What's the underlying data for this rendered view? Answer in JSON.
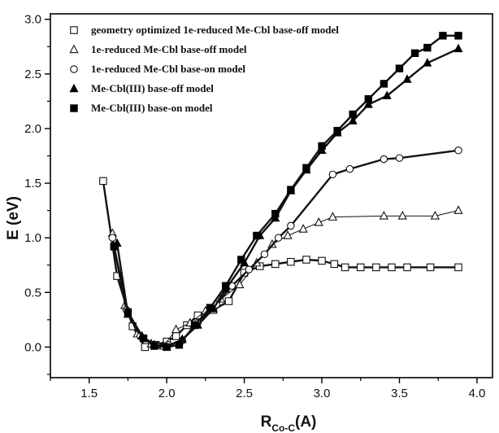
{
  "chart_data": {
    "type": "line",
    "title": "",
    "xlabel": "R",
    "xlabel_sub": "Co-C",
    "xlabel_unit": "(A)",
    "ylabel": "E (eV)",
    "xlim": [
      1.25,
      4.1
    ],
    "ylim": [
      -0.28,
      3.05
    ],
    "xticks": [
      1.5,
      2.0,
      2.5,
      3.0,
      3.5,
      4.0
    ],
    "xtick_labels": [
      "1.5",
      "2.0",
      "2.5",
      "3.0",
      "3.5",
      "4.0"
    ],
    "yticks": [
      0.0,
      0.5,
      1.0,
      1.5,
      2.0,
      2.5,
      3.0
    ],
    "ytick_labels": [
      "0.0",
      "0.5",
      "1.0",
      "1.5",
      "2.0",
      "2.5",
      "3.0"
    ],
    "grid": false,
    "legend_position": "top-left",
    "series": [
      {
        "name": "geometry optimized 1e-reduced Me-Cbl base-off model",
        "marker": "open-square",
        "line": "thick",
        "x": [
          1.59,
          1.68,
          1.78,
          1.86,
          1.93,
          2.0,
          2.06,
          2.13,
          2.2,
          2.3,
          2.4,
          2.5,
          2.6,
          2.7,
          2.8,
          2.9,
          3.0,
          3.08,
          3.15,
          3.25,
          3.35,
          3.45,
          3.55,
          3.7,
          3.88
        ],
        "y": [
          1.52,
          0.65,
          0.19,
          0.0,
          0.02,
          0.05,
          0.1,
          0.2,
          0.29,
          0.34,
          0.42,
          0.68,
          0.74,
          0.76,
          0.78,
          0.8,
          0.79,
          0.76,
          0.73,
          0.73,
          0.73,
          0.73,
          0.73,
          0.73,
          0.73
        ]
      },
      {
        "name": "1e-reduced Me-Cbl base-off model",
        "marker": "open-triangle",
        "line": "thin",
        "x": [
          1.65,
          1.73,
          1.81,
          1.9,
          1.98,
          2.06,
          2.15,
          2.25,
          2.35,
          2.47,
          2.58,
          2.68,
          2.78,
          2.88,
          2.98,
          3.07,
          3.4,
          3.52,
          3.73,
          3.88
        ],
        "y": [
          1.04,
          0.38,
          0.12,
          0.03,
          0.01,
          0.16,
          0.22,
          0.33,
          0.44,
          0.57,
          0.77,
          0.94,
          1.02,
          1.08,
          1.14,
          1.19,
          1.2,
          1.2,
          1.2,
          1.25
        ]
      },
      {
        "name": "1e-reduced Me-Cbl base-on model",
        "marker": "open-circle",
        "line": "thick",
        "x": [
          1.65,
          1.74,
          1.83,
          1.93,
          2.01,
          2.1,
          2.2,
          2.32,
          2.42,
          2.53,
          2.63,
          2.72,
          2.8,
          3.07,
          3.18,
          3.4,
          3.5,
          3.88
        ],
        "y": [
          1.0,
          0.34,
          0.1,
          0.02,
          0.02,
          0.06,
          0.22,
          0.39,
          0.56,
          0.71,
          0.85,
          1.0,
          1.11,
          1.58,
          1.63,
          1.72,
          1.73,
          1.8
        ]
      },
      {
        "name": "Me-Cbl(III) base-off model",
        "marker": "filled-triangle",
        "line": "thick",
        "x": [
          1.68,
          1.75,
          1.84,
          1.92,
          2.0,
          2.1,
          2.2,
          2.3,
          2.38,
          2.5,
          2.6,
          2.7,
          2.8,
          2.9,
          3.0,
          3.1,
          3.2,
          3.3,
          3.42,
          3.55,
          3.68,
          3.88
        ],
        "y": [
          0.95,
          0.3,
          0.1,
          0.02,
          0.0,
          0.07,
          0.2,
          0.35,
          0.53,
          0.77,
          1.02,
          1.18,
          1.43,
          1.62,
          1.8,
          1.96,
          2.07,
          2.22,
          2.3,
          2.45,
          2.6,
          2.73
        ]
      },
      {
        "name": "Me-Cbl(III) base-on model",
        "marker": "filled-square",
        "line": "thick",
        "x": [
          1.66,
          1.75,
          1.85,
          1.92,
          2.0,
          2.08,
          2.18,
          2.28,
          2.38,
          2.48,
          2.58,
          2.7,
          2.8,
          2.9,
          3.0,
          3.1,
          3.2,
          3.3,
          3.4,
          3.5,
          3.6,
          3.68,
          3.78,
          3.88
        ],
        "y": [
          0.92,
          0.32,
          0.08,
          0.01,
          0.0,
          0.02,
          0.2,
          0.36,
          0.56,
          0.8,
          1.02,
          1.22,
          1.44,
          1.64,
          1.84,
          1.98,
          2.13,
          2.27,
          2.41,
          2.55,
          2.69,
          2.74,
          2.85,
          2.85
        ]
      }
    ]
  }
}
